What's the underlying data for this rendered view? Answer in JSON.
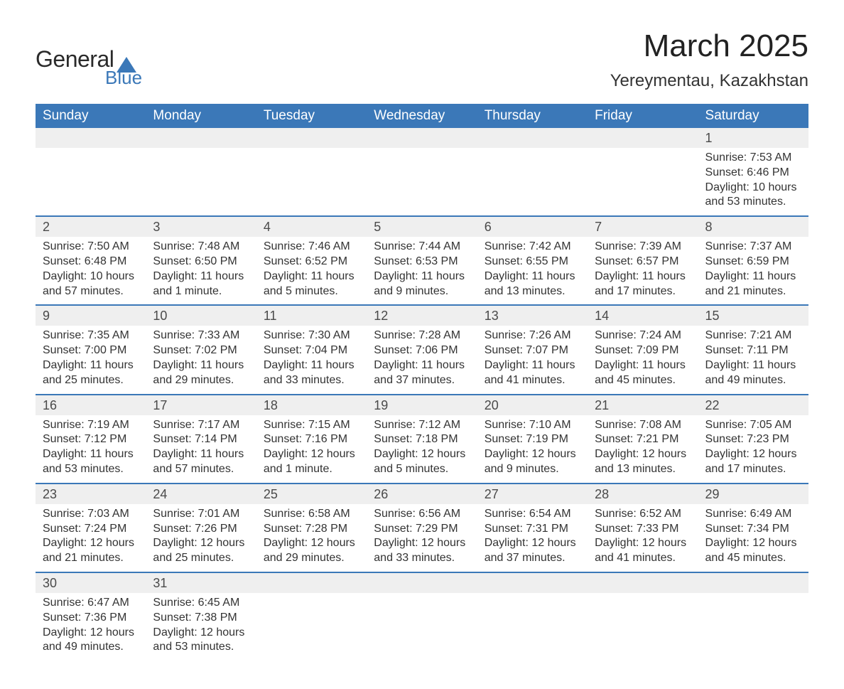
{
  "logo": {
    "text1": "General",
    "text2": "Blue",
    "shape_color": "#3b78b8"
  },
  "header": {
    "title": "March 2025",
    "location": "Yereymentau, Kazakhstan",
    "title_fontsize": 44,
    "location_fontsize": 24
  },
  "calendar": {
    "header_bg": "#3b78b8",
    "header_fg": "#ffffff",
    "daynum_bg": "#efefef",
    "row_divider": "#3b78b8",
    "text_color": "#333333",
    "font_family": "Arial",
    "cell_fontsize": 16,
    "days": [
      "Sunday",
      "Monday",
      "Tuesday",
      "Wednesday",
      "Thursday",
      "Friday",
      "Saturday"
    ],
    "first_weekday_index": 6,
    "weeks": [
      [
        null,
        null,
        null,
        null,
        null,
        null,
        {
          "n": "1",
          "sunrise": "7:53 AM",
          "sunset": "6:46 PM",
          "daylight": "10 hours and 53 minutes."
        }
      ],
      [
        {
          "n": "2",
          "sunrise": "7:50 AM",
          "sunset": "6:48 PM",
          "daylight": "10 hours and 57 minutes."
        },
        {
          "n": "3",
          "sunrise": "7:48 AM",
          "sunset": "6:50 PM",
          "daylight": "11 hours and 1 minute."
        },
        {
          "n": "4",
          "sunrise": "7:46 AM",
          "sunset": "6:52 PM",
          "daylight": "11 hours and 5 minutes."
        },
        {
          "n": "5",
          "sunrise": "7:44 AM",
          "sunset": "6:53 PM",
          "daylight": "11 hours and 9 minutes."
        },
        {
          "n": "6",
          "sunrise": "7:42 AM",
          "sunset": "6:55 PM",
          "daylight": "11 hours and 13 minutes."
        },
        {
          "n": "7",
          "sunrise": "7:39 AM",
          "sunset": "6:57 PM",
          "daylight": "11 hours and 17 minutes."
        },
        {
          "n": "8",
          "sunrise": "7:37 AM",
          "sunset": "6:59 PM",
          "daylight": "11 hours and 21 minutes."
        }
      ],
      [
        {
          "n": "9",
          "sunrise": "7:35 AM",
          "sunset": "7:00 PM",
          "daylight": "11 hours and 25 minutes."
        },
        {
          "n": "10",
          "sunrise": "7:33 AM",
          "sunset": "7:02 PM",
          "daylight": "11 hours and 29 minutes."
        },
        {
          "n": "11",
          "sunrise": "7:30 AM",
          "sunset": "7:04 PM",
          "daylight": "11 hours and 33 minutes."
        },
        {
          "n": "12",
          "sunrise": "7:28 AM",
          "sunset": "7:06 PM",
          "daylight": "11 hours and 37 minutes."
        },
        {
          "n": "13",
          "sunrise": "7:26 AM",
          "sunset": "7:07 PM",
          "daylight": "11 hours and 41 minutes."
        },
        {
          "n": "14",
          "sunrise": "7:24 AM",
          "sunset": "7:09 PM",
          "daylight": "11 hours and 45 minutes."
        },
        {
          "n": "15",
          "sunrise": "7:21 AM",
          "sunset": "7:11 PM",
          "daylight": "11 hours and 49 minutes."
        }
      ],
      [
        {
          "n": "16",
          "sunrise": "7:19 AM",
          "sunset": "7:12 PM",
          "daylight": "11 hours and 53 minutes."
        },
        {
          "n": "17",
          "sunrise": "7:17 AM",
          "sunset": "7:14 PM",
          "daylight": "11 hours and 57 minutes."
        },
        {
          "n": "18",
          "sunrise": "7:15 AM",
          "sunset": "7:16 PM",
          "daylight": "12 hours and 1 minute."
        },
        {
          "n": "19",
          "sunrise": "7:12 AM",
          "sunset": "7:18 PM",
          "daylight": "12 hours and 5 minutes."
        },
        {
          "n": "20",
          "sunrise": "7:10 AM",
          "sunset": "7:19 PM",
          "daylight": "12 hours and 9 minutes."
        },
        {
          "n": "21",
          "sunrise": "7:08 AM",
          "sunset": "7:21 PM",
          "daylight": "12 hours and 13 minutes."
        },
        {
          "n": "22",
          "sunrise": "7:05 AM",
          "sunset": "7:23 PM",
          "daylight": "12 hours and 17 minutes."
        }
      ],
      [
        {
          "n": "23",
          "sunrise": "7:03 AM",
          "sunset": "7:24 PM",
          "daylight": "12 hours and 21 minutes."
        },
        {
          "n": "24",
          "sunrise": "7:01 AM",
          "sunset": "7:26 PM",
          "daylight": "12 hours and 25 minutes."
        },
        {
          "n": "25",
          "sunrise": "6:58 AM",
          "sunset": "7:28 PM",
          "daylight": "12 hours and 29 minutes."
        },
        {
          "n": "26",
          "sunrise": "6:56 AM",
          "sunset": "7:29 PM",
          "daylight": "12 hours and 33 minutes."
        },
        {
          "n": "27",
          "sunrise": "6:54 AM",
          "sunset": "7:31 PM",
          "daylight": "12 hours and 37 minutes."
        },
        {
          "n": "28",
          "sunrise": "6:52 AM",
          "sunset": "7:33 PM",
          "daylight": "12 hours and 41 minutes."
        },
        {
          "n": "29",
          "sunrise": "6:49 AM",
          "sunset": "7:34 PM",
          "daylight": "12 hours and 45 minutes."
        }
      ],
      [
        {
          "n": "30",
          "sunrise": "6:47 AM",
          "sunset": "7:36 PM",
          "daylight": "12 hours and 49 minutes."
        },
        {
          "n": "31",
          "sunrise": "6:45 AM",
          "sunset": "7:38 PM",
          "daylight": "12 hours and 53 minutes."
        },
        null,
        null,
        null,
        null,
        null
      ]
    ],
    "labels": {
      "sunrise": "Sunrise:",
      "sunset": "Sunset:",
      "daylight": "Daylight:"
    }
  }
}
